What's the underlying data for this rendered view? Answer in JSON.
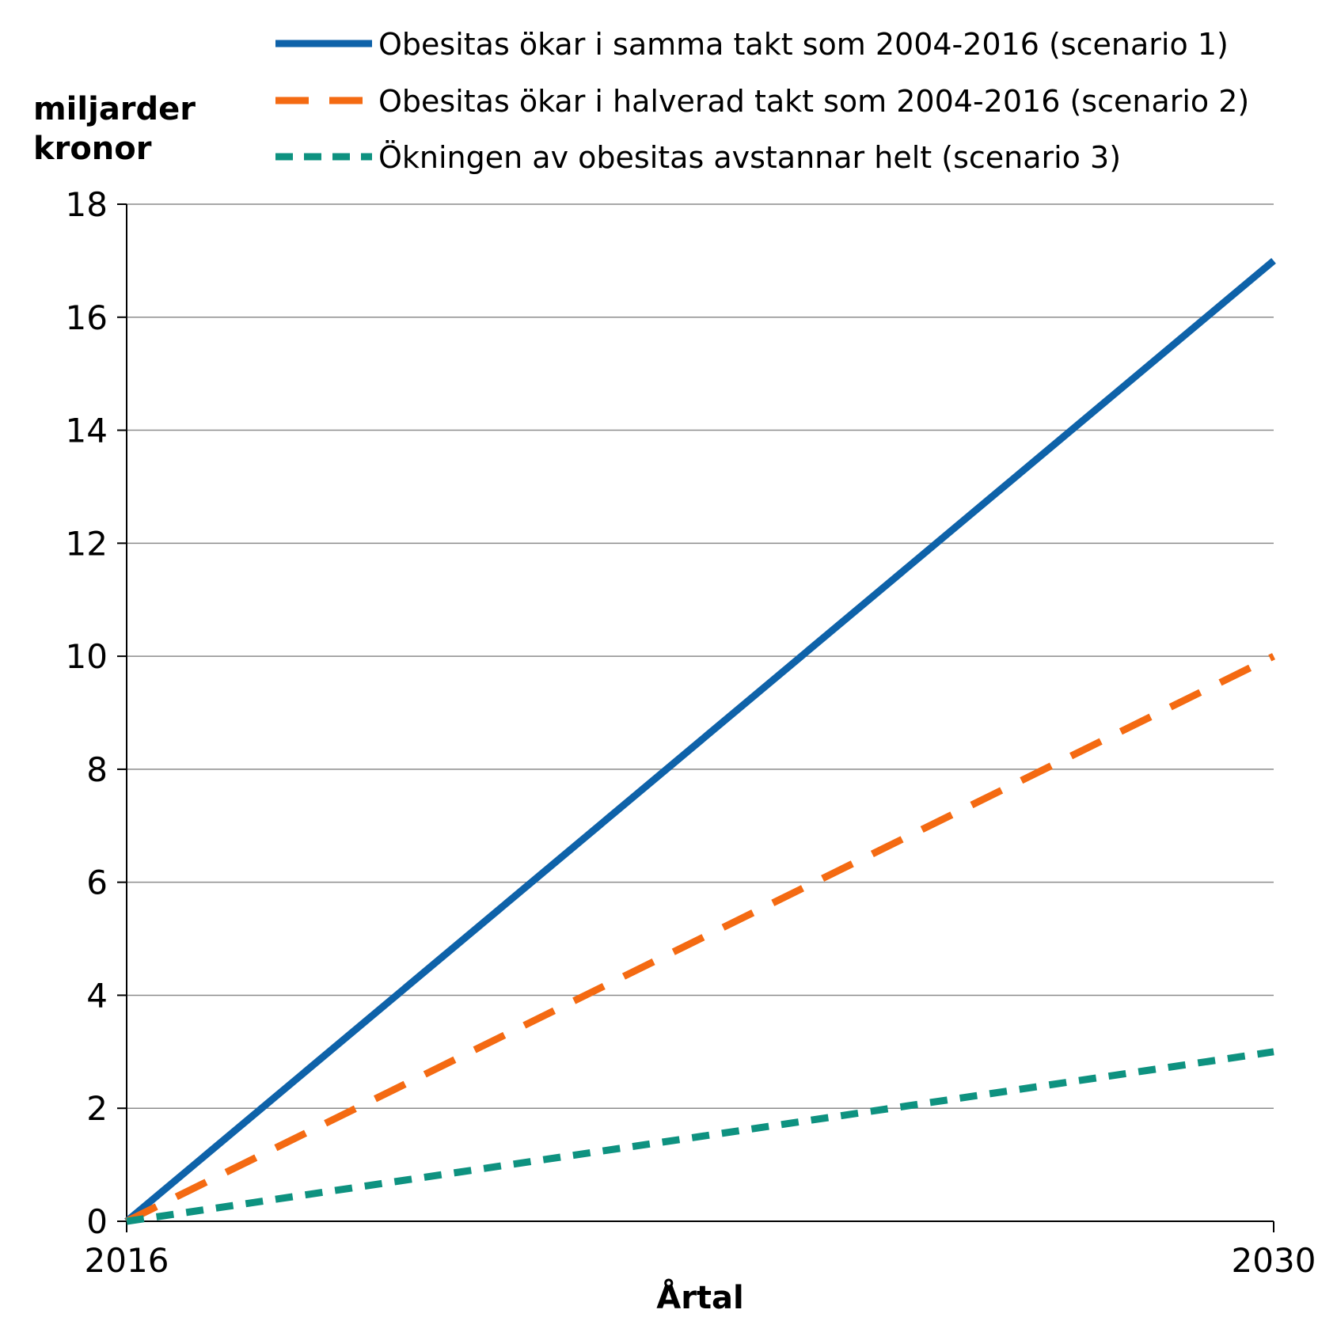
{
  "chart_data": {
    "type": "line",
    "title": "",
    "xlabel": "Årtal",
    "ylabel_lines": [
      "miljarder",
      "kronor"
    ],
    "x": [
      2016,
      2030
    ],
    "x_tick_labels": [
      "2016",
      "2030"
    ],
    "xlim": [
      2016,
      2030
    ],
    "ylim": [
      0,
      18
    ],
    "y_ticks": [
      0,
      2,
      4,
      6,
      8,
      10,
      12,
      14,
      16,
      18
    ],
    "y_tick_labels": [
      "0",
      "2",
      "4",
      "6",
      "8",
      "10",
      "12",
      "14",
      "16",
      "18"
    ],
    "grid": "horizontal",
    "legend_placement": "top",
    "series": [
      {
        "name": "Obesitas ökar i samma takt som 2004-2016 (scenario 1)",
        "values": [
          0,
          17
        ],
        "color": "#0e62a9",
        "style": "solid"
      },
      {
        "name": "Obesitas ökar i halverad takt som 2004-2016 (scenario 2)",
        "values": [
          0,
          10
        ],
        "color": "#f46a12",
        "style": "long-dash"
      },
      {
        "name": "Ökningen av obesitas avstannar helt (scenario 3)",
        "values": [
          0,
          3
        ],
        "color": "#0e9280",
        "style": "short-dash"
      }
    ]
  }
}
